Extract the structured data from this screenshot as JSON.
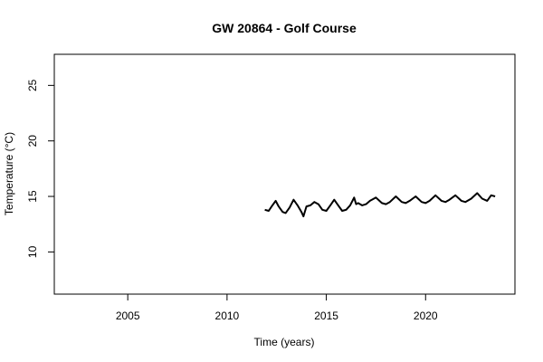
{
  "chart_data": {
    "type": "line",
    "title": "GW 20864 - Golf Course",
    "xlabel": "Time (years)",
    "ylabel": "Temperature (°C)",
    "xlim": [
      2001.3,
      2024.5
    ],
    "ylim": [
      6.2,
      27.8
    ],
    "x_ticks": [
      2005,
      2010,
      2015,
      2020
    ],
    "y_ticks": [
      10,
      15,
      20,
      25
    ],
    "x_tick_labels": [
      "2005",
      "2010",
      "2015",
      "2020"
    ],
    "y_tick_labels": [
      "10",
      "15",
      "20",
      "25"
    ],
    "grid": false,
    "legend": "none",
    "line_color": "#000000",
    "series": [
      {
        "x": [
          2011.9,
          2012.1,
          2012.25,
          2012.45,
          2012.6,
          2012.8,
          2012.95,
          2013.15,
          2013.35,
          2013.55,
          2013.75,
          2013.85,
          2014.0,
          2014.2,
          2014.4,
          2014.6,
          2014.8,
          2015.0,
          2015.2,
          2015.4,
          2015.6,
          2015.8,
          2016.0,
          2016.2,
          2016.4,
          2016.5,
          2016.6,
          2016.8,
          2017.0,
          2017.2,
          2017.5,
          2017.8,
          2018.0,
          2018.2,
          2018.5,
          2018.8,
          2019.0,
          2019.2,
          2019.5,
          2019.8,
          2020.0,
          2020.2,
          2020.5,
          2020.8,
          2021.0,
          2021.2,
          2021.5,
          2021.8,
          2022.0,
          2022.3,
          2022.6,
          2022.85,
          2023.1,
          2023.3,
          2023.5
        ],
        "y": [
          13.8,
          13.7,
          14.1,
          14.6,
          14.1,
          13.6,
          13.5,
          14.0,
          14.7,
          14.2,
          13.6,
          13.2,
          14.1,
          14.2,
          14.5,
          14.3,
          13.8,
          13.7,
          14.2,
          14.7,
          14.2,
          13.7,
          13.8,
          14.2,
          14.9,
          14.3,
          14.4,
          14.2,
          14.3,
          14.6,
          14.9,
          14.4,
          14.3,
          14.5,
          15.0,
          14.5,
          14.4,
          14.6,
          15.0,
          14.5,
          14.4,
          14.6,
          15.1,
          14.6,
          14.5,
          14.7,
          15.1,
          14.6,
          14.5,
          14.8,
          15.3,
          14.8,
          14.6,
          15.1,
          15.0
        ]
      }
    ]
  }
}
